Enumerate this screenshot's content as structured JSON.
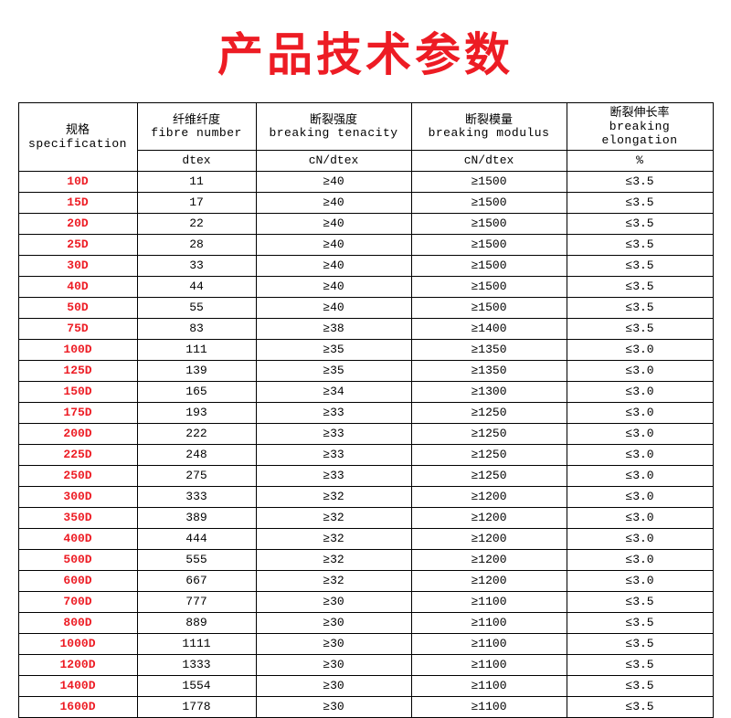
{
  "title": "产品技术参数",
  "title_color": "#ed1c24",
  "table": {
    "header": {
      "col1_cn": "规格",
      "col1_en": "specification",
      "col2_cn": "纤维纤度",
      "col2_en": "fibre number",
      "col3_cn": "断裂强度",
      "col3_en": "breaking tenacity",
      "col4_cn": "断裂模量",
      "col4_en": "breaking modulus",
      "col5_cn": "断裂伸长率",
      "col5_en": "breaking elongation",
      "unit_col2": "dtex",
      "unit_col3": "cN/dtex",
      "unit_col4": "cN/dtex",
      "unit_col5": "%"
    },
    "spec_color": "#ed1c24",
    "rows": [
      {
        "spec": "10D",
        "dtex": "11",
        "tenacity": "≥40",
        "modulus": "≥1500",
        "elong": "≤3.5"
      },
      {
        "spec": "15D",
        "dtex": "17",
        "tenacity": "≥40",
        "modulus": "≥1500",
        "elong": "≤3.5"
      },
      {
        "spec": "20D",
        "dtex": "22",
        "tenacity": "≥40",
        "modulus": "≥1500",
        "elong": "≤3.5"
      },
      {
        "spec": "25D",
        "dtex": "28",
        "tenacity": "≥40",
        "modulus": "≥1500",
        "elong": "≤3.5"
      },
      {
        "spec": "30D",
        "dtex": "33",
        "tenacity": "≥40",
        "modulus": "≥1500",
        "elong": "≤3.5"
      },
      {
        "spec": "40D",
        "dtex": "44",
        "tenacity": "≥40",
        "modulus": "≥1500",
        "elong": "≤3.5"
      },
      {
        "spec": "50D",
        "dtex": "55",
        "tenacity": "≥40",
        "modulus": "≥1500",
        "elong": "≤3.5"
      },
      {
        "spec": "75D",
        "dtex": "83",
        "tenacity": "≥38",
        "modulus": "≥1400",
        "elong": "≤3.5"
      },
      {
        "spec": "100D",
        "dtex": "111",
        "tenacity": "≥35",
        "modulus": "≥1350",
        "elong": "≤3.0"
      },
      {
        "spec": "125D",
        "dtex": "139",
        "tenacity": "≥35",
        "modulus": "≥1350",
        "elong": "≤3.0"
      },
      {
        "spec": "150D",
        "dtex": "165",
        "tenacity": "≥34",
        "modulus": "≥1300",
        "elong": "≤3.0"
      },
      {
        "spec": "175D",
        "dtex": "193",
        "tenacity": "≥33",
        "modulus": "≥1250",
        "elong": "≤3.0"
      },
      {
        "spec": "200D",
        "dtex": "222",
        "tenacity": "≥33",
        "modulus": "≥1250",
        "elong": "≤3.0"
      },
      {
        "spec": "225D",
        "dtex": "248",
        "tenacity": "≥33",
        "modulus": "≥1250",
        "elong": "≤3.0"
      },
      {
        "spec": "250D",
        "dtex": "275",
        "tenacity": "≥33",
        "modulus": "≥1250",
        "elong": "≤3.0"
      },
      {
        "spec": "300D",
        "dtex": "333",
        "tenacity": "≥32",
        "modulus": "≥1200",
        "elong": "≤3.0"
      },
      {
        "spec": "350D",
        "dtex": "389",
        "tenacity": "≥32",
        "modulus": "≥1200",
        "elong": "≤3.0"
      },
      {
        "spec": "400D",
        "dtex": "444",
        "tenacity": "≥32",
        "modulus": "≥1200",
        "elong": "≤3.0"
      },
      {
        "spec": "500D",
        "dtex": "555",
        "tenacity": "≥32",
        "modulus": "≥1200",
        "elong": "≤3.0"
      },
      {
        "spec": "600D",
        "dtex": "667",
        "tenacity": "≥32",
        "modulus": "≥1200",
        "elong": "≤3.0"
      },
      {
        "spec": "700D",
        "dtex": "777",
        "tenacity": "≥30",
        "modulus": "≥1100",
        "elong": "≤3.5"
      },
      {
        "spec": "800D",
        "dtex": "889",
        "tenacity": "≥30",
        "modulus": "≥1100",
        "elong": "≤3.5"
      },
      {
        "spec": "1000D",
        "dtex": "1111",
        "tenacity": "≥30",
        "modulus": "≥1100",
        "elong": "≤3.5"
      },
      {
        "spec": "1200D",
        "dtex": "1333",
        "tenacity": "≥30",
        "modulus": "≥1100",
        "elong": "≤3.5"
      },
      {
        "spec": "1400D",
        "dtex": "1554",
        "tenacity": "≥30",
        "modulus": "≥1100",
        "elong": "≤3.5"
      },
      {
        "spec": "1600D",
        "dtex": "1778",
        "tenacity": "≥30",
        "modulus": "≥1100",
        "elong": "≤3.5"
      }
    ]
  }
}
